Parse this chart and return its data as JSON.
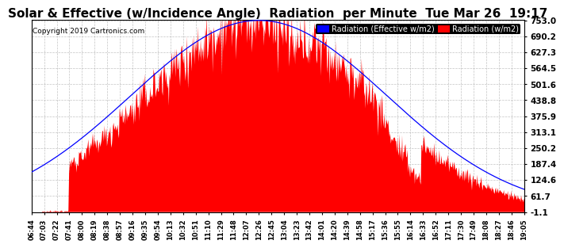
{
  "title": "Solar & Effective (w/Incidence Angle)  Radiation  per Minute  Tue Mar 26  19:17",
  "copyright": "Copyright 2019 Cartronics.com",
  "legend_blue": "Radiation (Effective w/m2)",
  "legend_red": "Radiation (w/m2)",
  "yticks": [
    753.0,
    690.2,
    627.3,
    564.5,
    501.6,
    438.8,
    375.9,
    313.1,
    250.2,
    187.4,
    124.6,
    61.7,
    -1.1
  ],
  "ymin": -1.1,
  "ymax": 753.0,
  "background_color": "#ffffff",
  "plot_bg_color": "#ffffff",
  "grid_color": "#aaaaaa",
  "red_fill": "#ff0000",
  "blue_line": "#0000ff",
  "title_fontsize": 11,
  "xtick_labels": [
    "06:44",
    "07:03",
    "07:22",
    "07:41",
    "08:00",
    "08:19",
    "08:38",
    "08:57",
    "09:16",
    "09:35",
    "09:54",
    "10:13",
    "10:32",
    "10:51",
    "11:10",
    "11:29",
    "11:48",
    "12:07",
    "12:26",
    "12:45",
    "13:04",
    "13:23",
    "13:42",
    "14:01",
    "14:20",
    "14:39",
    "14:58",
    "15:17",
    "15:36",
    "15:55",
    "16:14",
    "16:33",
    "16:52",
    "17:11",
    "17:30",
    "17:49",
    "18:08",
    "18:27",
    "18:46",
    "19:05"
  ]
}
